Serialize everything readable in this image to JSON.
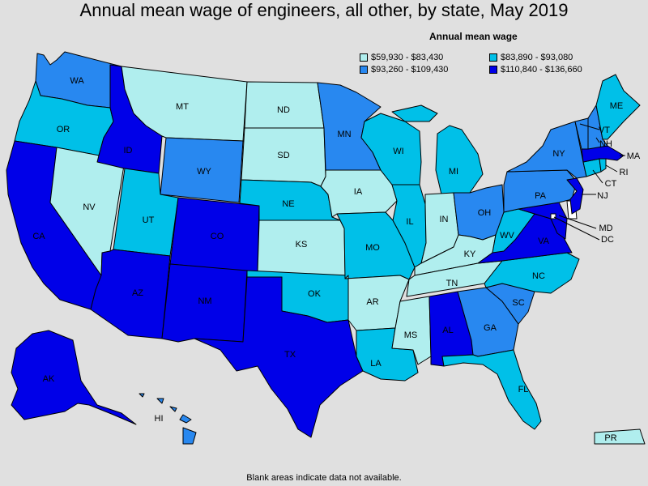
{
  "title": "Annual mean wage of engineers, all other, by state, May 2019",
  "legend": {
    "title": "Annual mean wage",
    "bins": [
      {
        "label": "$59,930 - $83,430",
        "color": "#b0eeee"
      },
      {
        "label": "$83,890 - $93,080",
        "color": "#00c0e8"
      },
      {
        "label": "$93,260 - $109,430",
        "color": "#2888f0"
      },
      {
        "label": "$110,840 - $136,660",
        "color": "#0000e8"
      }
    ]
  },
  "footnote": "Blank areas indicate data not available.",
  "states": {
    "WA": {
      "label": "WA",
      "bin": 2
    },
    "OR": {
      "label": "OR",
      "bin": 1
    },
    "CA": {
      "label": "CA",
      "bin": 3
    },
    "NV": {
      "label": "NV",
      "bin": 0
    },
    "ID": {
      "label": "ID",
      "bin": 3
    },
    "MT": {
      "label": "MT",
      "bin": 0
    },
    "WY": {
      "label": "WY",
      "bin": 2
    },
    "UT": {
      "label": "UT",
      "bin": 1
    },
    "AZ": {
      "label": "AZ",
      "bin": 3
    },
    "CO": {
      "label": "CO",
      "bin": 3
    },
    "NM": {
      "label": "NM",
      "bin": 3
    },
    "ND": {
      "label": "ND",
      "bin": 0
    },
    "SD": {
      "label": "SD",
      "bin": 0
    },
    "NE": {
      "label": "NE",
      "bin": 1
    },
    "KS": {
      "label": "KS",
      "bin": 0
    },
    "OK": {
      "label": "OK",
      "bin": 1
    },
    "TX": {
      "label": "TX",
      "bin": 3
    },
    "MN": {
      "label": "MN",
      "bin": 2
    },
    "IA": {
      "label": "IA",
      "bin": 0
    },
    "MO": {
      "label": "MO",
      "bin": 1
    },
    "AR": {
      "label": "AR",
      "bin": 0
    },
    "LA": {
      "label": "LA",
      "bin": 1
    },
    "WI": {
      "label": "WI",
      "bin": 1
    },
    "IL": {
      "label": "IL",
      "bin": 1
    },
    "MI": {
      "label": "MI",
      "bin": 1
    },
    "IN": {
      "label": "IN",
      "bin": 0
    },
    "OH": {
      "label": "OH",
      "bin": 2
    },
    "KY": {
      "label": "KY",
      "bin": 0
    },
    "TN": {
      "label": "TN",
      "bin": 0
    },
    "MS": {
      "label": "MS",
      "bin": 0
    },
    "AL": {
      "label": "AL",
      "bin": 3
    },
    "GA": {
      "label": "GA",
      "bin": 2
    },
    "FL": {
      "label": "FL",
      "bin": 1
    },
    "SC": {
      "label": "SC",
      "bin": 2
    },
    "NC": {
      "label": "NC",
      "bin": 1
    },
    "VA": {
      "label": "VA",
      "bin": 3
    },
    "WV": {
      "label": "WV",
      "bin": 1
    },
    "MD": {
      "label": "MD",
      "bin": 3
    },
    "DC": {
      "label": "DC",
      "bin": null
    },
    "DE": {
      "label": "",
      "bin": null
    },
    "PA": {
      "label": "PA",
      "bin": 2
    },
    "NJ": {
      "label": "NJ",
      "bin": 3
    },
    "NY": {
      "label": "NY",
      "bin": 2
    },
    "CT": {
      "label": "CT",
      "bin": 1
    },
    "RI": {
      "label": "RI",
      "bin": 1
    },
    "MA": {
      "label": "MA",
      "bin": 3
    },
    "VT": {
      "label": "VT",
      "bin": 2
    },
    "NH": {
      "label": "NH",
      "bin": 2
    },
    "ME": {
      "label": "ME",
      "bin": 1
    },
    "AK": {
      "label": "AK",
      "bin": 3
    },
    "HI": {
      "label": "HI",
      "bin": 2
    },
    "PR": {
      "label": "PR",
      "bin": 0
    }
  }
}
